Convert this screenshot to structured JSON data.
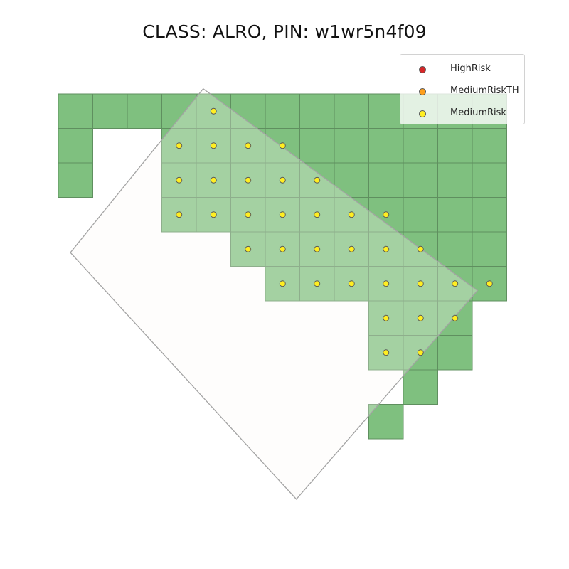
{
  "chart_data": {
    "type": "scatter",
    "title": "CLASS: ALRO, PIN: w1wr5n4f09",
    "xlabel": "",
    "ylabel": "",
    "grid": false,
    "axes_visible": false,
    "legend": {
      "placement": "top-right",
      "entries": [
        {
          "name": "HighRisk",
          "color": "#d62728"
        },
        {
          "name": "MediumRiskTH",
          "color": "#ff9f1c"
        },
        {
          "name": "MediumRisk",
          "color": "#ffee22"
        }
      ]
    },
    "colors": {
      "cell_fill": "#7fc07f",
      "cell_edge": "#5f8f5f",
      "parcel_fill": "#fdf8f5",
      "parcel_edge": "#a3a3a3",
      "marker_edge": "#555555"
    },
    "cell_grid": {
      "columns": 13,
      "rows": 10,
      "cells": [
        [
          0,
          0
        ],
        [
          1,
          0
        ],
        [
          2,
          0
        ],
        [
          3,
          0
        ],
        [
          4,
          0
        ],
        [
          5,
          0
        ],
        [
          6,
          0
        ],
        [
          7,
          0
        ],
        [
          8,
          0
        ],
        [
          9,
          0
        ],
        [
          10,
          0
        ],
        [
          11,
          0
        ],
        [
          12,
          0
        ],
        [
          0,
          1
        ],
        [
          3,
          1
        ],
        [
          4,
          1
        ],
        [
          5,
          1
        ],
        [
          6,
          1
        ],
        [
          7,
          1
        ],
        [
          8,
          1
        ],
        [
          9,
          1
        ],
        [
          10,
          1
        ],
        [
          11,
          1
        ],
        [
          12,
          1
        ],
        [
          0,
          2
        ],
        [
          3,
          2
        ],
        [
          4,
          2
        ],
        [
          5,
          2
        ],
        [
          6,
          2
        ],
        [
          7,
          2
        ],
        [
          8,
          2
        ],
        [
          9,
          2
        ],
        [
          10,
          2
        ],
        [
          11,
          2
        ],
        [
          12,
          2
        ],
        [
          3,
          3
        ],
        [
          4,
          3
        ],
        [
          5,
          3
        ],
        [
          6,
          3
        ],
        [
          7,
          3
        ],
        [
          8,
          3
        ],
        [
          9,
          3
        ],
        [
          10,
          3
        ],
        [
          11,
          3
        ],
        [
          12,
          3
        ],
        [
          5,
          4
        ],
        [
          6,
          4
        ],
        [
          7,
          4
        ],
        [
          8,
          4
        ],
        [
          9,
          4
        ],
        [
          10,
          4
        ],
        [
          11,
          4
        ],
        [
          12,
          4
        ],
        [
          6,
          5
        ],
        [
          7,
          5
        ],
        [
          8,
          5
        ],
        [
          9,
          5
        ],
        [
          10,
          5
        ],
        [
          11,
          5
        ],
        [
          12,
          5
        ],
        [
          9,
          6
        ],
        [
          10,
          6
        ],
        [
          11,
          6
        ],
        [
          9,
          7
        ],
        [
          10,
          7
        ],
        [
          11,
          7
        ],
        [
          10,
          8
        ],
        [
          9,
          9
        ]
      ]
    },
    "parcel_polygon": [
      [
        4.2,
        -0.15
      ],
      [
        12.15,
        5.7
      ],
      [
        6.9,
        11.75
      ],
      [
        0.35,
        4.6
      ]
    ],
    "series": [
      {
        "name": "MediumRisk",
        "points": [
          [
            4.5,
            0.5
          ],
          [
            3.5,
            1.5
          ],
          [
            4.5,
            1.5
          ],
          [
            5.5,
            1.5
          ],
          [
            6.5,
            1.5
          ],
          [
            3.5,
            2.5
          ],
          [
            4.5,
            2.5
          ],
          [
            5.5,
            2.5
          ],
          [
            6.5,
            2.5
          ],
          [
            7.5,
            2.5
          ],
          [
            3.5,
            3.5
          ],
          [
            4.5,
            3.5
          ],
          [
            5.5,
            3.5
          ],
          [
            6.5,
            3.5
          ],
          [
            7.5,
            3.5
          ],
          [
            8.5,
            3.5
          ],
          [
            9.5,
            3.5
          ],
          [
            5.5,
            4.5
          ],
          [
            6.5,
            4.5
          ],
          [
            7.5,
            4.5
          ],
          [
            8.5,
            4.5
          ],
          [
            9.5,
            4.5
          ],
          [
            10.5,
            4.5
          ],
          [
            6.5,
            5.5
          ],
          [
            7.5,
            5.5
          ],
          [
            8.5,
            5.5
          ],
          [
            9.5,
            5.5
          ],
          [
            10.5,
            5.5
          ],
          [
            11.5,
            5.5
          ],
          [
            12.5,
            5.5
          ],
          [
            9.5,
            6.5
          ],
          [
            10.5,
            6.5
          ],
          [
            11.5,
            6.5
          ],
          [
            9.5,
            7.5
          ],
          [
            10.5,
            7.5
          ]
        ]
      },
      {
        "name": "HighRisk",
        "points": []
      },
      {
        "name": "MediumRiskTH",
        "points": []
      }
    ]
  }
}
